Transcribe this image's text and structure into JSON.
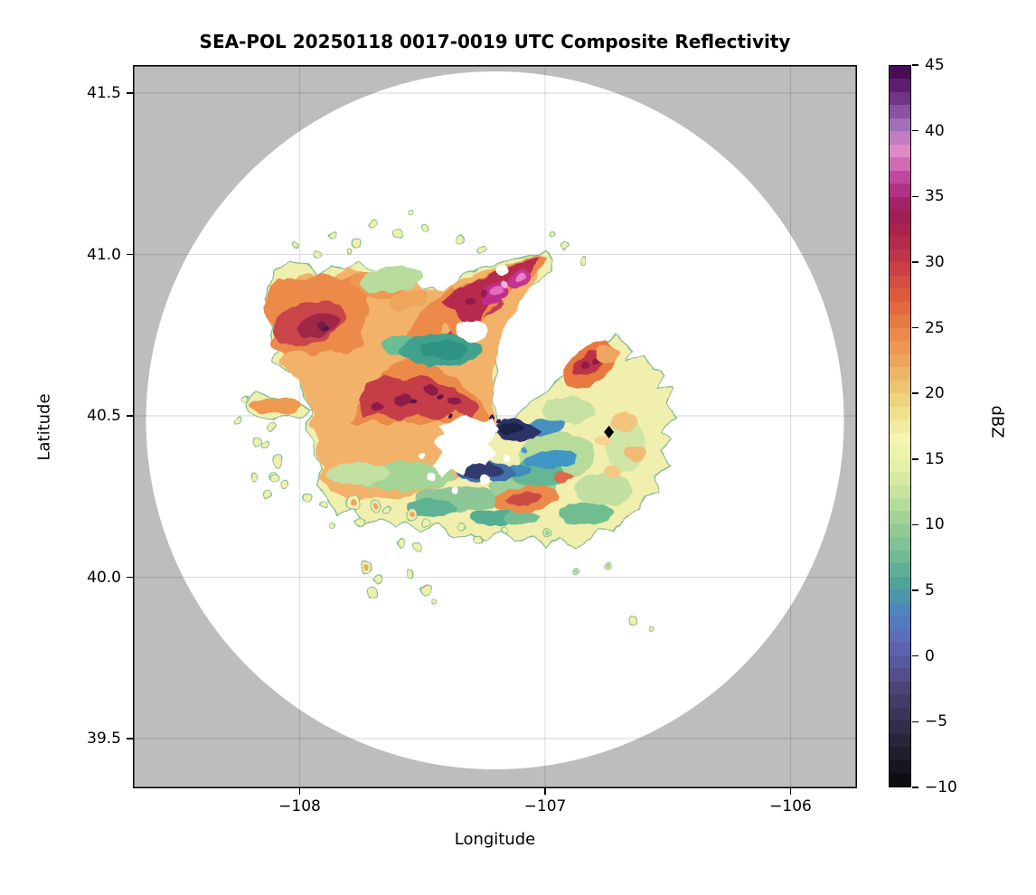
{
  "title": "SEA-POL 20250118 0017-0019 UTC Composite Reflectivity",
  "axes": {
    "xlabel": "Longitude",
    "ylabel": "Latitude",
    "x_ticks": [
      {
        "value": -108,
        "label": "−108"
      },
      {
        "value": -107,
        "label": "−107"
      },
      {
        "value": -106,
        "label": "−106"
      }
    ],
    "y_ticks": [
      {
        "value": 41.5,
        "label": "41.5"
      },
      {
        "value": 41.0,
        "label": "41.0"
      },
      {
        "value": 40.5,
        "label": "40.5"
      },
      {
        "value": 40.0,
        "label": "40.0"
      },
      {
        "value": 39.5,
        "label": "39.5"
      }
    ],
    "x_range": [
      -108.68,
      -105.73
    ],
    "y_range": [
      39.35,
      41.58
    ],
    "grid": true
  },
  "colorbar": {
    "label": "dBZ",
    "min": -10,
    "max": 45,
    "n_steps": 55,
    "ticks": [
      {
        "value": 45,
        "label": "45"
      },
      {
        "value": 40,
        "label": "40"
      },
      {
        "value": 35,
        "label": "35"
      },
      {
        "value": 30,
        "label": "30"
      },
      {
        "value": 25,
        "label": "25"
      },
      {
        "value": 20,
        "label": "20"
      },
      {
        "value": 15,
        "label": "15"
      },
      {
        "value": 10,
        "label": "10"
      },
      {
        "value": 5,
        "label": "5"
      },
      {
        "value": 0,
        "label": "0"
      },
      {
        "value": -5,
        "label": "−5"
      },
      {
        "value": -10,
        "label": "−10"
      }
    ],
    "palette_stops": [
      {
        "value": -10.0,
        "color": "#0a0a0c"
      },
      {
        "value": -7.8,
        "color": "#1f1b2a"
      },
      {
        "value": -5.6,
        "color": "#322d47"
      },
      {
        "value": -3.4,
        "color": "#443d68"
      },
      {
        "value": -1.2,
        "color": "#56528f"
      },
      {
        "value": 1.0,
        "color": "#5e68b8"
      },
      {
        "value": 3.2,
        "color": "#4f83c2"
      },
      {
        "value": 5.4,
        "color": "#4da39c"
      },
      {
        "value": 7.6,
        "color": "#72bb93"
      },
      {
        "value": 9.8,
        "color": "#97cc95"
      },
      {
        "value": 12.0,
        "color": "#bfe09d"
      },
      {
        "value": 14.2,
        "color": "#e2eea6"
      },
      {
        "value": 16.4,
        "color": "#f6f6b2"
      },
      {
        "value": 18.6,
        "color": "#efdf8d"
      },
      {
        "value": 20.8,
        "color": "#edc26d"
      },
      {
        "value": 23.0,
        "color": "#ec9f57"
      },
      {
        "value": 25.2,
        "color": "#e87f46"
      },
      {
        "value": 27.4,
        "color": "#de5c3e"
      },
      {
        "value": 29.6,
        "color": "#cb3e44"
      },
      {
        "value": 31.8,
        "color": "#b0284e"
      },
      {
        "value": 34.0,
        "color": "#9c1b59"
      },
      {
        "value": 36.2,
        "color": "#bb3d9b"
      },
      {
        "value": 38.4,
        "color": "#e18cc6"
      },
      {
        "value": 40.6,
        "color": "#9f6fb9"
      },
      {
        "value": 42.8,
        "color": "#6b2a82"
      },
      {
        "value": 45.0,
        "color": "#40054b"
      }
    ]
  },
  "chart_data": {
    "type": "heatmap",
    "subtype": "radar-composite-reflectivity-ppi",
    "title": "SEA-POL 20250118 0017-0019 UTC Composite Reflectivity",
    "xlabel": "Longitude",
    "ylabel": "Latitude",
    "value_units": "dBZ",
    "value_range": [
      -10,
      45
    ],
    "radar": {
      "center_lon": -107.2,
      "center_lat": 40.49,
      "range_ring_radius_deg_lat": 1.08,
      "inside_range_no_echo_color": "#ffffff",
      "outside_range_color": "#bdbdbd"
    },
    "marker": {
      "shape": "diamond",
      "color": "#000000",
      "lon": -106.74,
      "lat": 40.45
    },
    "blocked_sector": {
      "description": "white wedge of missing data opening north-northeast from the radar center, plus an echo-free hole at the radar site"
    },
    "echo_features": [
      {
        "region": "northwest core",
        "center": [
          -107.94,
          40.77
        ],
        "peak_dbz": 33,
        "typical_dbz": 27
      },
      {
        "region": "central diagonal band southwest of radar",
        "center": [
          -107.49,
          40.57
        ],
        "peak_dbz": 34,
        "typical_dbz": 28
      },
      {
        "region": "northeast band with embedded bright cores",
        "center": [
          -107.2,
          40.88
        ],
        "peak_dbz": 38,
        "typical_dbz": 30
      },
      {
        "region": "eastern lobe core",
        "center": [
          -106.82,
          40.65
        ],
        "peak_dbz": 32,
        "typical_dbz": 26
      },
      {
        "region": "low-reflectivity pocket just east of radar",
        "center": [
          -107.11,
          40.44
        ],
        "min_dbz": -5,
        "typical_dbz": 3
      },
      {
        "region": "teal pocket west-central",
        "center": [
          -107.43,
          40.7
        ],
        "typical_dbz": 10
      },
      {
        "region": "stratiform fringe surrounding cores",
        "dbz_range": [
          15,
          20
        ]
      },
      {
        "region": "scattered light echoes south and southwest of main shield",
        "dbz_range": [
          15,
          22
        ]
      }
    ],
    "legend_position": "right-colorbar"
  },
  "colors": {
    "background": "#ffffff",
    "frame": "#000000",
    "gridline": "rgba(0,0,0,0.13)",
    "outside_range_gray": "#bdbdbd"
  }
}
